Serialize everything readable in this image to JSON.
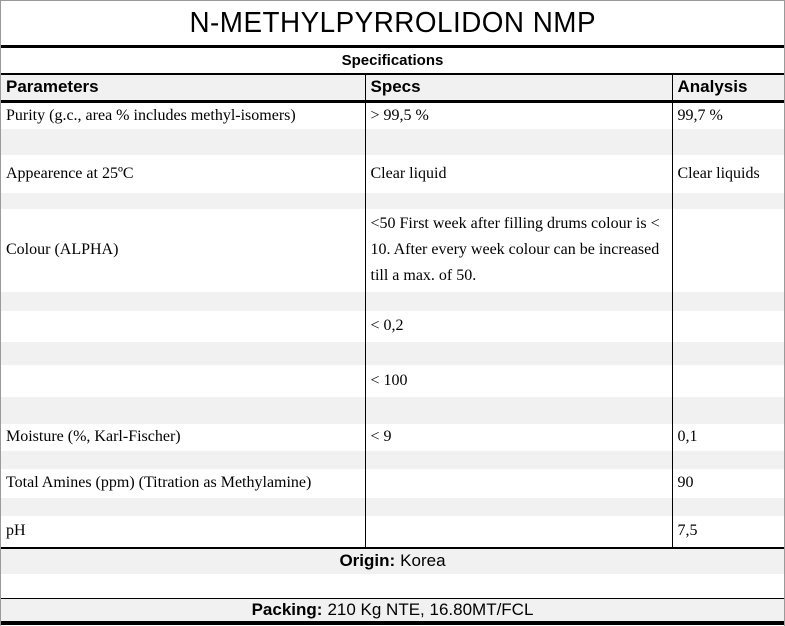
{
  "title": "N-METHYLPYRROLIDON NMP",
  "specifications_label": "Specifications",
  "colors": {
    "band_gray": "#f1f1f1",
    "rule_black": "#000000",
    "outer_border_gray": "#9a9a9a"
  },
  "table": {
    "headers": [
      "Parameters",
      "Specs",
      "Analysis"
    ],
    "rows": [
      {
        "param": "Purity (g.c., area % includes methyl-isomers)",
        "spec": "> 99,5 %",
        "analysis": "99,7 %"
      },
      {
        "param": "",
        "spec": "",
        "analysis": ""
      },
      {
        "param": "Appearence at 25ºC",
        "spec": "Clear liquid",
        "analysis": "Clear liquids"
      },
      {
        "param": "",
        "spec": "",
        "analysis": ""
      },
      {
        "param": "Colour (ALPHA)",
        "spec": "<50 First week after filling drums colour is < 10. After every week colour can be increased till a max. of 50.",
        "analysis": ""
      },
      {
        "param": "",
        "spec": "",
        "analysis": ""
      },
      {
        "param": "",
        "spec": "< 0,2",
        "analysis": ""
      },
      {
        "param": "",
        "spec": "",
        "analysis": ""
      },
      {
        "param": "",
        "spec": "< 100",
        "analysis": ""
      },
      {
        "param": "",
        "spec": "",
        "analysis": ""
      },
      {
        "param": "Moisture (%, Karl-Fischer)",
        "spec": "< 9",
        "analysis": "0,1"
      },
      {
        "param": "",
        "spec": "",
        "analysis": ""
      },
      {
        "param": "Total Amines (ppm) (Titration as Methylamine)",
        "spec": "",
        "analysis": "90"
      },
      {
        "param": "",
        "spec": "",
        "analysis": ""
      },
      {
        "param": "pH",
        "spec": "",
        "analysis": "7,5"
      }
    ]
  },
  "origin": {
    "label": "Origin:",
    "value": "Korea"
  },
  "packing": {
    "label": "Packing:",
    "value": "210 Kg NTE, 16.80MT/FCL"
  }
}
